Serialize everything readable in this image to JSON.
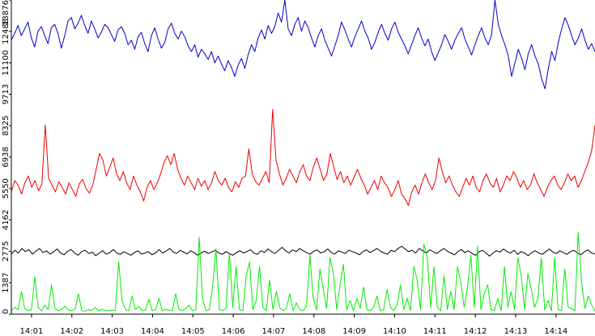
{
  "chart_data": {
    "type": "line",
    "title": "",
    "xlabel": "",
    "ylabel": "",
    "grid": false,
    "legend": "none",
    "xlim": [
      "14:00:30",
      "14:14:58"
    ],
    "ylim": [
      0,
      13876
    ],
    "x_ticks": [
      "14:01",
      "14:02",
      "14:03",
      "14:04",
      "14:05",
      "14:06",
      "14:07",
      "14:08",
      "14:09",
      "14:10",
      "14:11",
      "14:12",
      "14:13",
      "14:14"
    ],
    "y_ticks": [
      "0",
      "1387",
      "2775",
      "4162",
      "5550",
      "6938",
      "8325",
      "9713",
      "11100",
      "12488",
      "13876"
    ],
    "series": [
      {
        "color": "#0000cc",
        "x_start": "14:00:30",
        "x_end": "14:14:58",
        "values": [
          12100,
          12400,
          12750,
          12300,
          12600,
          12900,
          12200,
          11800,
          12500,
          12700,
          12300,
          11950,
          12650,
          12800,
          12400,
          11750,
          12300,
          12950,
          13100,
          12600,
          12850,
          13200,
          12750,
          12400,
          12950,
          12600,
          12200,
          12450,
          12800,
          12650,
          12350,
          12050,
          12550,
          12700,
          12400,
          11900,
          12100,
          11700,
          12250,
          12450,
          11950,
          11600,
          12300,
          12650,
          12150,
          11750,
          12000,
          12600,
          12850,
          12400,
          12150,
          12500,
          12250,
          11850,
          11600,
          11900,
          11350,
          11700,
          11500,
          11250,
          11600,
          11100,
          11400,
          11050,
          10750,
          11200,
          10900,
          10500,
          11000,
          11300,
          10850,
          11450,
          11900,
          11600,
          12200,
          12550,
          12150,
          12750,
          12400,
          12700,
          13300,
          12900,
          13876,
          12600,
          12300,
          12800,
          13100,
          12500,
          12950,
          12650,
          12200,
          11800,
          12300,
          12600,
          12100,
          11750,
          11400,
          11850,
          12300,
          12900,
          12550,
          12150,
          11800,
          12250,
          12600,
          12950,
          12500,
          12200,
          11700,
          12000,
          12450,
          12800,
          12400,
          12100,
          12600,
          12900,
          12450,
          12150,
          11850,
          11500,
          11900,
          12300,
          12650,
          12200,
          11850,
          12150,
          11600,
          11200,
          11550,
          11900,
          12350,
          12050,
          11700,
          12100,
          12400,
          12650,
          12150,
          11800,
          11450,
          11900,
          12300,
          12650,
          12200,
          11900,
          12350,
          13876,
          12800,
          12300,
          11900,
          11400,
          10500,
          11100,
          11700,
          11300,
          10800,
          11500,
          11900,
          11400,
          11050,
          10400,
          9950,
          10850,
          11600,
          11200,
          12000,
          12600,
          13100,
          12750,
          12300,
          11900,
          12200,
          12600,
          12100,
          11700,
          11950,
          11600
        ]
      },
      {
        "color": "#ee0000",
        "x_start": "14:00:30",
        "x_end": "14:14:58",
        "values": [
          5400,
          5900,
          5700,
          5300,
          5800,
          6100,
          5600,
          5900,
          5450,
          5750,
          8350,
          6000,
          5700,
          5400,
          5850,
          5600,
          5300,
          5800,
          5500,
          5200,
          5750,
          5950,
          5550,
          5350,
          5700,
          6400,
          7100,
          6800,
          6100,
          6500,
          6900,
          6200,
          5900,
          6300,
          5800,
          5500,
          6100,
          5700,
          5400,
          5000,
          5600,
          5900,
          5500,
          5800,
          6200,
          6700,
          7000,
          6600,
          7100,
          6400,
          6000,
          5700,
          6100,
          5800,
          5500,
          6000,
          5650,
          5900,
          5500,
          5800,
          6300,
          5900,
          5700,
          6000,
          5600,
          5400,
          5850,
          5600,
          6000,
          6100,
          7300,
          6200,
          5850,
          5700,
          6000,
          6300,
          5800,
          9050,
          6800,
          6200,
          5700,
          6000,
          6400,
          6100,
          5800,
          6300,
          6600,
          6100,
          5900,
          6500,
          6900,
          6400,
          5900,
          6200,
          7100,
          6500,
          5950,
          6300,
          5800,
          6100,
          5700,
          6050,
          6400,
          6000,
          5700,
          5300,
          5600,
          5900,
          5500,
          6100,
          5800,
          5600,
          5200,
          5500,
          5900,
          5300,
          5100,
          4800,
          5400,
          5700,
          5300,
          5800,
          6200,
          5800,
          5500,
          5900,
          6900,
          6300,
          5800,
          6100,
          5700,
          5400,
          5200,
          5600,
          6000,
          5700,
          6100,
          5600,
          5400,
          5900,
          6200,
          5800,
          5600,
          6000,
          5400,
          5700,
          6100,
          5900,
          6300,
          6000,
          5600,
          5900,
          5500,
          5700,
          6200,
          5800,
          5500,
          5200,
          5600,
          5900,
          6100,
          5700,
          5500,
          5800,
          6200,
          5900,
          6100,
          5600,
          5900,
          6300,
          6700,
          7200,
          8350
        ]
      },
      {
        "color": "#000000",
        "x_start": "14:00:30",
        "x_end": "14:14:58",
        "values": [
          2650,
          2820,
          2700,
          2900,
          2760,
          2850,
          2650,
          2780,
          2900,
          2720,
          2800,
          2650,
          2750,
          2880,
          2700,
          2620,
          2780,
          2850,
          2700,
          2600,
          2760,
          2820,
          2680,
          2740,
          2580,
          2700,
          2800,
          2650,
          2720,
          2850,
          2700,
          2640,
          2760,
          2680,
          2600,
          2720,
          2800,
          2650,
          2700,
          2760,
          2620,
          2700,
          2850,
          2700,
          2780,
          2900,
          2750,
          2680,
          2820,
          2740,
          2660,
          2800,
          2720,
          2600,
          2700,
          2780,
          2680,
          2750,
          2820,
          2700,
          2640,
          2760,
          2680,
          2600,
          2720,
          2800,
          2700,
          2760,
          2850,
          2700,
          2640,
          2800,
          2720,
          2880,
          2760,
          2680,
          2820,
          2950,
          2800,
          2700,
          2840,
          2760,
          2900,
          2800,
          2720,
          2650,
          2780,
          2840,
          2700,
          2760,
          2880,
          2720,
          2650,
          2800,
          2740,
          2680,
          2820,
          2760,
          2700,
          2620,
          2760,
          2840,
          2720,
          2800,
          2900,
          2780,
          2700,
          2650,
          2820,
          2760,
          2900,
          3000,
          2880,
          2760,
          2820,
          2700,
          2900,
          2800,
          2700,
          2840,
          2760,
          2680,
          2800,
          2900,
          2780,
          2700,
          2620,
          2760,
          2850,
          2720,
          2800,
          2680,
          2600,
          2750,
          2820,
          2700,
          2560,
          2700,
          2800,
          2740,
          2880,
          2760,
          2700,
          2820,
          2640,
          2760,
          2700,
          2580,
          2720,
          2800,
          2700,
          2640,
          2760,
          2880,
          2740,
          2680,
          2800,
          2720,
          2640,
          2760,
          2820,
          2700,
          2620,
          2760,
          2840,
          2700,
          2660
        ]
      },
      {
        "color": "#00ee00",
        "x_start": "14:00:30",
        "x_end": "14:14:58",
        "values": [
          150,
          300,
          200,
          1000,
          250,
          150,
          200,
          1650,
          300,
          150,
          400,
          200,
          1300,
          250,
          150,
          200,
          350,
          180,
          150,
          220,
          900,
          150,
          130,
          200,
          150,
          300,
          150,
          200,
          170,
          150,
          180,
          160,
          2300,
          600,
          200,
          150,
          800,
          200,
          350,
          150,
          180,
          650,
          150,
          200,
          700,
          150,
          200,
          180,
          150,
          900,
          200,
          150,
          250,
          400,
          150,
          200,
          3400,
          700,
          150,
          200,
          1200,
          2900,
          200,
          150,
          250,
          2700,
          300,
          2100,
          200,
          150,
          1700,
          2300,
          200,
          600,
          2100,
          300,
          150,
          1500,
          200,
          1000,
          300,
          150,
          250,
          900,
          150,
          500,
          200,
          150,
          350,
          2600,
          700,
          180,
          2000,
          1100,
          250,
          2500,
          1800,
          200,
          1300,
          2200,
          200,
          600,
          150,
          700,
          250,
          1200,
          200,
          150,
          300,
          800,
          150,
          200,
          1100,
          300,
          150,
          400,
          1300,
          200,
          700,
          150,
          2100,
          1500,
          200,
          3100,
          2500,
          300,
          2100,
          300,
          150,
          1700,
          200,
          1000,
          200,
          2100,
          1400,
          300,
          1200,
          2600,
          300,
          3000,
          200,
          900,
          1300,
          200,
          150,
          700,
          150,
          2100,
          300,
          1000,
          200,
          2500,
          1700,
          200,
          1800,
          1100,
          300,
          700,
          2500,
          200,
          600,
          150,
          2500,
          200,
          150,
          2000,
          300,
          250,
          150,
          3600,
          1400,
          250,
          800,
          400,
          150
        ]
      }
    ]
  }
}
